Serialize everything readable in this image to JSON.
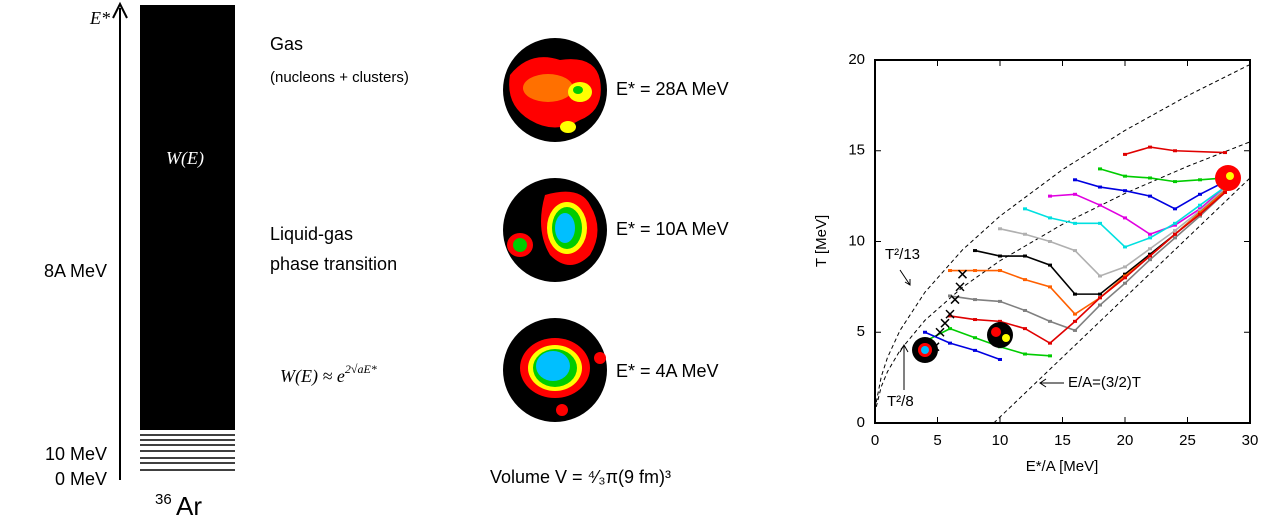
{
  "left_panel": {
    "energy_axis_label": "E*",
    "density_label": "W(E)",
    "level_labels": [
      "8A MeV",
      "10 MeV",
      "0 MeV"
    ],
    "nucleus_mass": "36",
    "nucleus_symbol": "Ar"
  },
  "middle_panel": {
    "states": [
      {
        "title": "Gas",
        "subtitle": "(nucleons + clusters)",
        "energy": "E* = 28A MeV"
      },
      {
        "title": "Liquid-gas",
        "subtitle": "phase transition",
        "energy": "E* = 10A MeV"
      },
      {
        "energy": "E* = 4A MeV"
      }
    ],
    "formula": "W(E) ≈ e",
    "formula_exponent": "2√aE*",
    "volume": "Volume V = ⁴⁄₃π(9 fm)³"
  },
  "chart_data": {
    "type": "line",
    "x_label": "E*/A    [MeV]",
    "y_label": "T [MeV]",
    "xlim": [
      0,
      30
    ],
    "ylim": [
      0,
      20
    ],
    "xticks": [
      0,
      5,
      10,
      15,
      20,
      25,
      30
    ],
    "yticks": [
      0,
      5,
      10,
      15,
      20
    ],
    "annotations": [
      "T²/13",
      "T²/8",
      "E/A=(3/2)T"
    ],
    "series": [
      {
        "color": "#000000",
        "style": "dashed",
        "x": [
          0.1,
          0.5,
          1,
          2,
          4,
          7,
          10,
          15,
          20,
          25,
          30
        ],
        "values": [
          1.14,
          2.55,
          3.61,
          5.1,
          7.21,
          9.54,
          11.4,
          13.96,
          16.12,
          18.03,
          19.75
        ]
      },
      {
        "color": "#000000",
        "style": "dashed",
        "x": [
          0.1,
          0.5,
          1,
          2,
          4,
          7,
          10,
          15,
          20,
          25,
          30
        ],
        "values": [
          0.89,
          2,
          2.83,
          4,
          5.66,
          7.48,
          8.94,
          10.95,
          12.65,
          14.14,
          15.49
        ]
      },
      {
        "color": "#000000",
        "style": "dashed",
        "x": [
          9.5,
          30
        ],
        "values": [
          0,
          13.5
        ]
      },
      {
        "color": "#e00000",
        "style": "line",
        "x": [
          20,
          22,
          24,
          28
        ],
        "values": [
          14.8,
          15.2,
          15.0,
          14.9
        ]
      },
      {
        "color": "#00cc00",
        "style": "line",
        "x": [
          18,
          20,
          22,
          24,
          26,
          28
        ],
        "values": [
          14.0,
          13.6,
          13.5,
          13.3,
          13.4,
          13.5
        ]
      },
      {
        "color": "#0000e0",
        "style": "line",
        "x": [
          16,
          18,
          20,
          22,
          24,
          26,
          28
        ],
        "values": [
          13.4,
          13.0,
          12.8,
          12.5,
          11.8,
          12.6,
          13.3
        ]
      },
      {
        "color": "#e000e0",
        "style": "line",
        "x": [
          14,
          16,
          18,
          20,
          22,
          24,
          26,
          28
        ],
        "values": [
          12.5,
          12.6,
          12.0,
          11.3,
          10.4,
          10.9,
          11.8,
          13.0
        ]
      },
      {
        "color": "#00e0e0",
        "style": "line",
        "x": [
          12,
          14,
          16,
          18,
          20,
          22,
          24,
          26,
          28
        ],
        "values": [
          11.8,
          11.3,
          11.0,
          11.0,
          9.7,
          10.2,
          11.0,
          12.0,
          13.0
        ]
      },
      {
        "color": "#b0b0b0",
        "style": "line",
        "x": [
          10,
          12,
          14,
          16,
          18,
          20,
          22,
          24,
          26,
          28
        ],
        "values": [
          10.7,
          10.4,
          10.0,
          9.5,
          8.1,
          8.6,
          9.6,
          10.6,
          11.7,
          12.9
        ]
      },
      {
        "color": "#000000",
        "style": "line",
        "x": [
          8,
          10,
          12,
          14,
          16,
          18,
          20,
          22,
          24,
          26,
          28
        ],
        "values": [
          9.5,
          9.2,
          9.2,
          8.7,
          7.1,
          7.1,
          8.2,
          9.3,
          10.4,
          11.6,
          12.8
        ]
      },
      {
        "color": "#ff6000",
        "style": "line",
        "x": [
          6,
          8,
          10,
          12,
          14,
          16,
          18,
          20,
          22,
          24,
          26,
          28
        ],
        "values": [
          8.4,
          8.4,
          8.4,
          7.9,
          7.5,
          6.0,
          6.9,
          8.1,
          9.2,
          10.4,
          11.6,
          12.8
        ]
      },
      {
        "color": "#808080",
        "style": "line",
        "x": [
          6,
          8,
          10,
          12,
          14,
          16,
          18,
          20,
          22,
          24,
          26,
          28
        ],
        "values": [
          7.0,
          6.8,
          6.7,
          6.2,
          5.6,
          5.1,
          6.5,
          7.7,
          9.0,
          10.2,
          11.4,
          12.7
        ]
      },
      {
        "color": "#e00000",
        "style": "line",
        "x": [
          6,
          8,
          10,
          12,
          14,
          16,
          18,
          20,
          22,
          24,
          26,
          28
        ],
        "values": [
          5.9,
          5.7,
          5.6,
          5.2,
          4.4,
          5.6,
          6.9,
          8.0,
          9.2,
          10.4,
          11.5,
          12.7
        ]
      },
      {
        "color": "#00cc00",
        "style": "line",
        "x": [
          4,
          6,
          8,
          10,
          12,
          14
        ],
        "values": [
          4.5,
          5.2,
          4.7,
          4.2,
          3.8,
          3.7
        ]
      },
      {
        "color": "#0000e0",
        "style": "line",
        "x": [
          4,
          6,
          8,
          10
        ],
        "values": [
          5.0,
          4.4,
          4.0,
          3.5
        ]
      },
      {
        "color": "#000000",
        "style": "cross",
        "x": [
          4.8,
          5.2,
          5.6,
          6.0,
          6.4,
          6.8,
          7.0
        ],
        "values": [
          4.2,
          5.0,
          5.5,
          6.0,
          6.8,
          7.5,
          8.2
        ]
      }
    ]
  }
}
